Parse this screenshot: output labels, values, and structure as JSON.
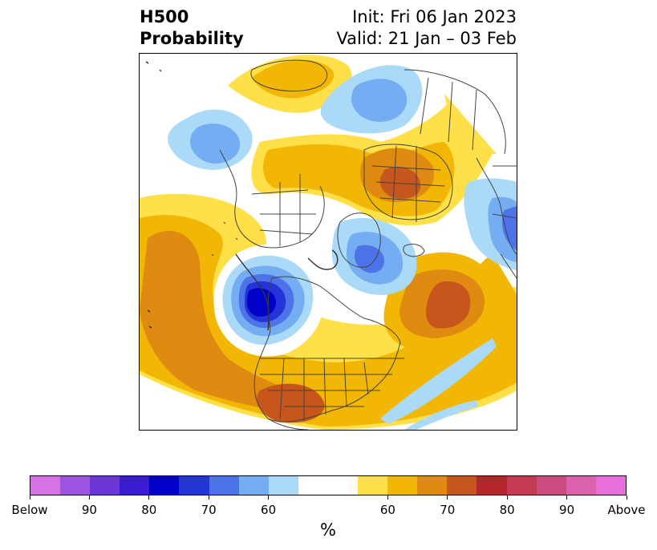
{
  "title": {
    "left_line1": "H500",
    "left_line2": "Probability",
    "right_line1": "Init: Fri 06 Jan 2023",
    "right_line2": "Valid: 21 Jan – 03 Feb"
  },
  "colorbar": {
    "unit": "%",
    "tick_labels": [
      "Below",
      "90",
      "80",
      "70",
      "60",
      "60",
      "70",
      "80",
      "90",
      "Above"
    ],
    "below_colors": [
      "#d672e6",
      "#9b55e0",
      "#6a36d8",
      "#3b1bd2",
      "#0000c8",
      "#2435d8",
      "#4d73e8",
      "#74adf2",
      "#abdaf8"
    ],
    "neutral_color": "#ffffff",
    "above_colors": [
      "#ffe048",
      "#f2b705",
      "#df8a10",
      "#c6561c",
      "#b3262a",
      "#c33a52",
      "#cc4b7e",
      "#dc62ae",
      "#e86edc"
    ]
  },
  "map": {
    "projection": "north-polar-stereographic",
    "region": "Northern Hemisphere / North America",
    "field": "500 hPa height probability"
  }
}
